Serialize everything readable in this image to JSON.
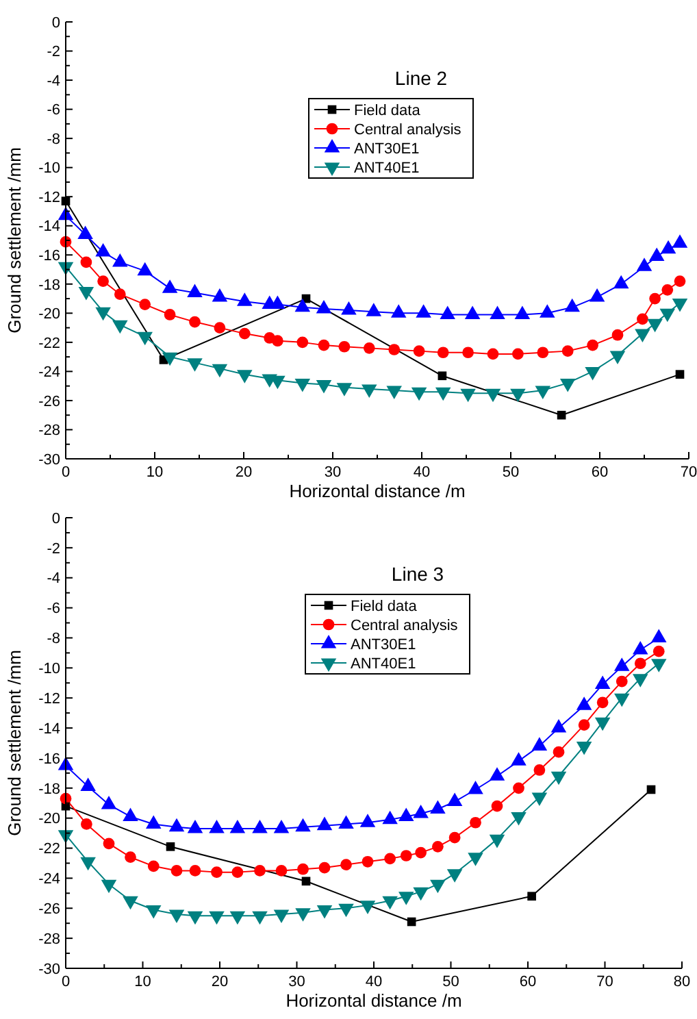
{
  "chart_data": [
    {
      "type": "line",
      "title": "Line 2",
      "xlabel": "Horizontal distance /m",
      "ylabel": "Ground settlement /mm",
      "xlim": [
        0,
        70
      ],
      "ylim": [
        -30,
        0
      ],
      "xticks": [
        0,
        {
          "value": 5,
          "label": null
        },
        10,
        {
          "value": 15,
          "label": null
        },
        20,
        {
          "value": 25,
          "label": null
        },
        30,
        {
          "value": 35,
          "label": null
        },
        40,
        {
          "value": 45,
          "label": null
        },
        50,
        {
          "value": 55,
          "label": null
        },
        60,
        {
          "value": 65,
          "label": null
        },
        70
      ],
      "yticks": [
        -30,
        {
          "value": -29,
          "label": null
        },
        -28,
        {
          "value": -27,
          "label": null
        },
        -26,
        {
          "value": -25,
          "label": null
        },
        -24,
        {
          "value": -23,
          "label": null
        },
        -22,
        {
          "value": -21,
          "label": null
        },
        -20,
        {
          "value": -19,
          "label": null
        },
        -18,
        {
          "value": -17,
          "label": null
        },
        -16,
        {
          "value": -15,
          "label": null
        },
        -14,
        {
          "value": -13,
          "label": null
        },
        -12,
        {
          "value": -11,
          "label": null
        },
        -10,
        {
          "value": -9,
          "label": null
        },
        -8,
        {
          "value": -7,
          "label": null
        },
        -6,
        {
          "value": -5,
          "label": null
        },
        -4,
        {
          "value": -3,
          "label": null
        },
        -2,
        {
          "value": -1,
          "label": null
        },
        0
      ],
      "grid": false,
      "legend": "top",
      "series": [
        {
          "name": "Field data",
          "color": "#000000",
          "marker": "square",
          "x": [
            0,
            11,
            27,
            42.3,
            55.7,
            69
          ],
          "values": [
            -12.3,
            -23.2,
            -19.0,
            -24.3,
            -27.0,
            -24.2
          ]
        },
        {
          "name": "Central analysis",
          "color": "#ff0000",
          "marker": "circle",
          "x": [
            0,
            2.3,
            4.2,
            6.1,
            8.9,
            11.7,
            14.5,
            17.3,
            20.1,
            22.9,
            23.8,
            26.6,
            29.0,
            31.3,
            34.1,
            36.9,
            39.7,
            42.4,
            45.2,
            48.0,
            50.8,
            53.6,
            56.4,
            59.2,
            62.0,
            64.8,
            66.2,
            67.6,
            69.0
          ],
          "values": [
            -15.1,
            -16.5,
            -17.8,
            -18.7,
            -19.4,
            -20.1,
            -20.6,
            -21.0,
            -21.4,
            -21.7,
            -21.9,
            -22.0,
            -22.2,
            -22.3,
            -22.4,
            -22.5,
            -22.6,
            -22.7,
            -22.7,
            -22.8,
            -22.8,
            -22.7,
            -22.6,
            -22.2,
            -21.5,
            -20.4,
            -19.0,
            -18.4,
            -17.8
          ]
        },
        {
          "name": "ANT30E1",
          "color": "#0000ff",
          "marker": "triangle",
          "x": [
            0,
            2.2,
            4.2,
            6.1,
            8.9,
            11.7,
            14.5,
            17.3,
            20.1,
            22.9,
            23.8,
            26.6,
            29.0,
            31.8,
            34.6,
            37.4,
            40.2,
            42.9,
            45.7,
            48.5,
            51.3,
            54.1,
            56.9,
            59.7,
            62.4,
            65.0,
            66.4,
            67.7,
            69.0
          ],
          "values": [
            -13.3,
            -14.6,
            -15.8,
            -16.5,
            -17.1,
            -18.3,
            -18.6,
            -18.9,
            -19.2,
            -19.4,
            -19.4,
            -19.6,
            -19.7,
            -19.8,
            -19.9,
            -20.0,
            -20.0,
            -20.1,
            -20.1,
            -20.1,
            -20.1,
            -20.0,
            -19.6,
            -18.9,
            -18.0,
            -16.8,
            -16.1,
            -15.6,
            -15.2
          ]
        },
        {
          "name": "ANT40E1",
          "color": "#008080",
          "marker": "triangle-down",
          "x": [
            0,
            2.3,
            4.2,
            6.1,
            8.9,
            11.7,
            14.5,
            17.3,
            20.1,
            22.9,
            23.8,
            26.6,
            29.0,
            31.3,
            34.1,
            36.9,
            39.7,
            42.4,
            45.2,
            48.0,
            50.8,
            53.6,
            56.4,
            59.2,
            62.0,
            64.8,
            66.2,
            67.6,
            69.0
          ],
          "values": [
            -16.8,
            -18.5,
            -19.9,
            -20.8,
            -21.6,
            -23.0,
            -23.4,
            -23.8,
            -24.2,
            -24.5,
            -24.6,
            -24.8,
            -24.9,
            -25.1,
            -25.2,
            -25.3,
            -25.4,
            -25.4,
            -25.5,
            -25.5,
            -25.5,
            -25.3,
            -24.8,
            -24.0,
            -22.9,
            -21.4,
            -20.7,
            -20.0,
            -19.3
          ]
        }
      ]
    },
    {
      "type": "line",
      "title": "Line 3",
      "xlabel": "Horizontal distance /m",
      "ylabel": "Ground settlement /mm",
      "xlim": [
        0,
        80
      ],
      "ylim": [
        -30,
        0
      ],
      "xticks": [
        0,
        {
          "value": 5,
          "label": null
        },
        10,
        {
          "value": 15,
          "label": null
        },
        20,
        {
          "value": 25,
          "label": null
        },
        30,
        {
          "value": 35,
          "label": null
        },
        40,
        {
          "value": 45,
          "label": null
        },
        50,
        {
          "value": 55,
          "label": null
        },
        60,
        {
          "value": 65,
          "label": null
        },
        70,
        {
          "value": 75,
          "label": null
        },
        80
      ],
      "yticks": [
        -30,
        {
          "value": -29,
          "label": null
        },
        -28,
        {
          "value": -27,
          "label": null
        },
        -26,
        {
          "value": -25,
          "label": null
        },
        -24,
        {
          "value": -23,
          "label": null
        },
        -22,
        {
          "value": -21,
          "label": null
        },
        -20,
        {
          "value": -19,
          "label": null
        },
        -18,
        {
          "value": -17,
          "label": null
        },
        -16,
        {
          "value": -15,
          "label": null
        },
        -14,
        {
          "value": -13,
          "label": null
        },
        -12,
        {
          "value": -11,
          "label": null
        },
        -10,
        {
          "value": -9,
          "label": null
        },
        -8,
        {
          "value": -7,
          "label": null
        },
        -6,
        {
          "value": -5,
          "label": null
        },
        -4,
        {
          "value": -3,
          "label": null
        },
        -2,
        {
          "value": -1,
          "label": null
        },
        0
      ],
      "grid": false,
      "legend": "top",
      "series": [
        {
          "name": "Field data",
          "color": "#000000",
          "marker": "square",
          "x": [
            0,
            13.6,
            31.2,
            44.9,
            60.5,
            76
          ],
          "values": [
            -19.2,
            -21.9,
            -24.2,
            -26.9,
            -25.2,
            -18.1
          ]
        },
        {
          "name": "Central analysis",
          "color": "#ff0000",
          "marker": "circle",
          "x": [
            0,
            2.7,
            5.6,
            8.4,
            11.4,
            14.4,
            16.8,
            19.6,
            22.3,
            25.2,
            28.0,
            30.8,
            33.6,
            36.4,
            39.2,
            42.1,
            44.2,
            46.1,
            48.3,
            50.5,
            53.2,
            56.0,
            58.8,
            61.5,
            64.0,
            67.3,
            69.7,
            72.2,
            74.6,
            77.0
          ],
          "values": [
            -18.7,
            -20.4,
            -21.7,
            -22.6,
            -23.2,
            -23.5,
            -23.5,
            -23.6,
            -23.6,
            -23.5,
            -23.5,
            -23.4,
            -23.3,
            -23.1,
            -22.9,
            -22.7,
            -22.5,
            -22.3,
            -21.9,
            -21.3,
            -20.3,
            -19.2,
            -18.0,
            -16.8,
            -15.6,
            -13.8,
            -12.3,
            -10.9,
            -9.7,
            -8.9
          ]
        },
        {
          "name": "ANT30E1",
          "color": "#0000ff",
          "marker": "triangle",
          "x": [
            0,
            2.9,
            5.6,
            8.4,
            11.4,
            14.4,
            16.8,
            19.6,
            22.3,
            25.2,
            28.0,
            30.8,
            33.6,
            36.4,
            39.2,
            42.1,
            44.2,
            46.1,
            48.3,
            50.5,
            53.2,
            56.0,
            58.8,
            61.5,
            64.0,
            67.3,
            69.7,
            72.2,
            74.6,
            77.0
          ],
          "values": [
            -16.5,
            -17.9,
            -19.1,
            -19.9,
            -20.4,
            -20.6,
            -20.7,
            -20.7,
            -20.7,
            -20.7,
            -20.7,
            -20.6,
            -20.5,
            -20.4,
            -20.3,
            -20.1,
            -19.9,
            -19.7,
            -19.4,
            -18.9,
            -18.1,
            -17.2,
            -16.2,
            -15.2,
            -14.0,
            -12.5,
            -11.1,
            -9.9,
            -8.8,
            -8.0
          ]
        },
        {
          "name": "ANT40E1",
          "color": "#008080",
          "marker": "triangle-down",
          "x": [
            0,
            2.9,
            5.6,
            8.4,
            11.4,
            14.4,
            16.8,
            19.6,
            22.3,
            25.2,
            28.0,
            30.8,
            33.6,
            36.4,
            39.2,
            42.1,
            44.2,
            46.1,
            48.3,
            50.5,
            53.2,
            56.0,
            58.8,
            61.5,
            64.0,
            67.3,
            69.7,
            72.2,
            74.6,
            77.0
          ],
          "values": [
            -21.1,
            -22.9,
            -24.4,
            -25.5,
            -26.1,
            -26.4,
            -26.5,
            -26.5,
            -26.5,
            -26.5,
            -26.4,
            -26.3,
            -26.1,
            -26.0,
            -25.8,
            -25.5,
            -25.2,
            -24.9,
            -24.4,
            -23.7,
            -22.6,
            -21.4,
            -19.9,
            -18.6,
            -17.2,
            -15.2,
            -13.6,
            -12.0,
            -10.7,
            -9.7
          ]
        }
      ]
    }
  ]
}
